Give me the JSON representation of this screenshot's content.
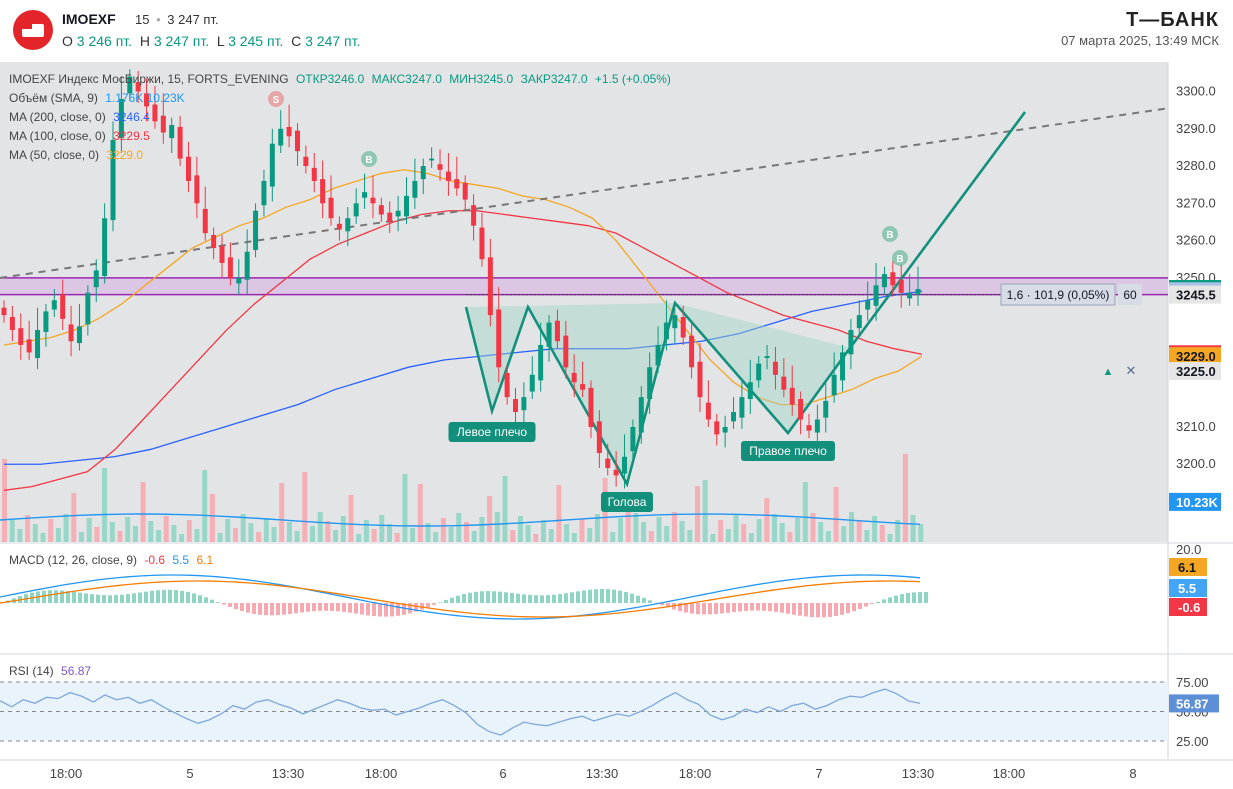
{
  "header": {
    "ticker": "IMOEXF",
    "timeframe": "15",
    "separator": "•",
    "last_price": "3 247 пт.",
    "open_label": "O",
    "open_value": "3 246 пт.",
    "high_label": "H",
    "high_value": "3 247 пт.",
    "low_label": "L",
    "low_value": "3 245 пт.",
    "close_label": "C",
    "close_value": "3 247 пт.",
    "brand": "Т—БАНК",
    "datetime": "07 марта 2025, 13:49 МСК"
  },
  "legend": {
    "main_title": "IMOEXF Индекс МосБиржи, 15, FORTS_EVENING",
    "open": "ОТКР3246.0",
    "high": "МАКС3247.0",
    "low": "МИН3245.0",
    "close": "ЗАКР3247.0",
    "change": "+1.5 (+0.05%)",
    "volume": "Объём (SMA, 9)",
    "volume_vals": "1.176K  10.23K",
    "ma200": "MA (200, close, 0)",
    "ma200_val": "3246.4",
    "ma100": "MA (100, close, 0)",
    "ma100_val": "3229.5",
    "ma50": "MA (50, close, 0)",
    "ma50_val": "3229.0",
    "macd": "MACD (12, 26, close, 9)",
    "macd_hist": "-0.6",
    "macd_line": "5.5",
    "macd_signal": "6.1",
    "rsi": "RSI (14)",
    "rsi_val": "56.87"
  },
  "colors": {
    "up": "#089981",
    "down": "#f23645",
    "ma200": "#2962ff",
    "ma100": "#f23645",
    "ma50": "#f5a623",
    "pattern": "#13907c",
    "band": "#9c27b0",
    "volume_sma": "#2196f3"
  },
  "chart_data": {
    "type": "candlestick",
    "symbol": "IMOEXF",
    "price_axis": {
      "ticks": [
        3300.0,
        3290.0,
        3280.0,
        3270.0,
        3260.0,
        3250.0,
        3210.0,
        3200.0,
        3190.0
      ],
      "labels": [
        "3300.0",
        "3290.0",
        "3280.0",
        "3270.0",
        "3260.0",
        "3250.0",
        "3210.0",
        "3200.0",
        "3190.0"
      ],
      "ylim": [
        3181,
        3306
      ]
    },
    "price_badges": [
      {
        "label": "3247.0",
        "value": 3247.0,
        "bg": "#089981",
        "fg": "#ffffff"
      },
      {
        "label": "3246.4",
        "value": 3246.4,
        "bg": "#a9c2e6",
        "fg": "#131722"
      },
      {
        "label": "3245.5",
        "value": 3245.5,
        "bg": "#e6e6e6",
        "fg": "#131722"
      },
      {
        "label": "3229.5",
        "value": 3229.5,
        "bg": "#f23645",
        "fg": "#ffffff"
      },
      {
        "label": "3229.0",
        "value": 3229.0,
        "bg": "#f5a623",
        "fg": "#131722"
      },
      {
        "label": "3225.0",
        "value": 3225.0,
        "bg": "#e6e6e6",
        "fg": "#131722"
      },
      {
        "label": "10.23K",
        "value": 3189.9,
        "bg": "#2196f3",
        "fg": "#ffffff"
      }
    ],
    "measure_label": "1,6 · 101,9 (0,05%)",
    "measure_badge": "60",
    "time_axis": {
      "labels": [
        "18:00",
        "5",
        "13:30",
        "18:00",
        "6",
        "13:30",
        "18:00",
        "7",
        "13:30",
        "18:00",
        "8"
      ]
    },
    "close_series": [
      3240,
      3236,
      3232,
      3230,
      3236,
      3241,
      3244,
      3239,
      3233,
      3237,
      3246,
      3252,
      3266,
      3287,
      3298,
      3304,
      3300,
      3296,
      3292,
      3289,
      3291,
      3282,
      3276,
      3270,
      3262,
      3258,
      3254,
      3250,
      3250,
      3257,
      3268,
      3276,
      3286,
      3290,
      3288,
      3284,
      3280,
      3276,
      3270,
      3266,
      3263,
      3266,
      3270,
      3273,
      3270,
      3267,
      3265,
      3268,
      3272,
      3276,
      3280,
      3282,
      3279,
      3276,
      3274,
      3271,
      3264,
      3255,
      3240,
      3226,
      3218,
      3214,
      3218,
      3224,
      3232,
      3238,
      3233,
      3226,
      3222,
      3220,
      3210,
      3203,
      3199,
      3197,
      3202,
      3210,
      3218,
      3226,
      3232,
      3238,
      3240,
      3234,
      3226,
      3218,
      3212,
      3208,
      3210,
      3214,
      3218,
      3222,
      3227,
      3229,
      3224,
      3220,
      3216,
      3212,
      3209,
      3212,
      3217,
      3224,
      3230,
      3236,
      3240,
      3244,
      3248,
      3251,
      3248,
      3246,
      3246,
      3247
    ],
    "ma50": [
      3232,
      3233,
      3234,
      3236,
      3239,
      3243,
      3248,
      3253,
      3258,
      3261,
      3264,
      3266,
      3269,
      3271,
      3274,
      3276,
      3278,
      3279,
      3278,
      3276,
      3275,
      3274,
      3272,
      3271,
      3269,
      3266,
      3260,
      3252,
      3244,
      3236,
      3228,
      3222,
      3218,
      3216,
      3216,
      3218,
      3220,
      3223,
      3225,
      3229
    ],
    "ma100": [
      3193,
      3194,
      3196,
      3198,
      3204,
      3212,
      3220,
      3228,
      3236,
      3243,
      3249,
      3255,
      3259,
      3262,
      3265,
      3267,
      3268,
      3268,
      3267,
      3266,
      3265,
      3264,
      3262,
      3258,
      3254,
      3250,
      3246,
      3243,
      3240,
      3238,
      3236,
      3233,
      3231,
      3229.5
    ],
    "ma200": [
      3200,
      3200,
      3201,
      3202,
      3204,
      3207,
      3210,
      3213,
      3216,
      3220,
      3223,
      3226,
      3228,
      3229,
      3230,
      3231,
      3231,
      3231,
      3232,
      3233,
      3235,
      3238,
      3241,
      3243,
      3245,
      3246.4
    ],
    "resistance_band": [
      3245.5,
      3250.0
    ],
    "neckline": 3245.5,
    "trendline_from": [
      3250,
      3273
    ],
    "pattern_labels": [
      "Левое плечо",
      "Голова",
      "Правое плечо"
    ],
    "markers": [
      "S",
      "B",
      "B",
      "B"
    ],
    "macd_axis": {
      "label_top": "20.0"
    },
    "macd_badges": [
      {
        "label": "6.1",
        "bg": "#f5a623",
        "fg": "#131722"
      },
      {
        "label": "5.5",
        "bg": "#42a5f5",
        "fg": "#ffffff"
      },
      {
        "label": "-0.6",
        "bg": "#f23645",
        "fg": "#ffffff"
      }
    ],
    "rsi_axis": {
      "labels": [
        "75.00",
        "50.00",
        "25.00"
      ]
    },
    "rsi_badge": "56.87",
    "rsi_series": [
      59,
      54,
      60,
      57,
      62,
      61,
      66,
      63,
      58,
      64,
      60,
      62,
      57,
      60,
      54,
      49,
      44,
      40,
      43,
      48,
      55,
      52,
      58,
      60,
      56,
      53,
      48,
      52,
      56,
      60,
      57,
      53,
      51,
      52,
      47,
      50,
      53,
      57,
      60,
      55,
      49,
      39,
      33,
      30,
      36,
      41,
      39,
      38,
      41,
      44,
      46,
      42,
      45,
      48,
      46,
      50,
      55,
      61,
      66,
      60,
      56,
      47,
      43,
      46,
      52,
      49,
      54,
      50,
      55,
      57,
      52,
      55,
      60,
      63,
      62,
      66,
      69,
      65,
      59,
      56.87
    ]
  }
}
